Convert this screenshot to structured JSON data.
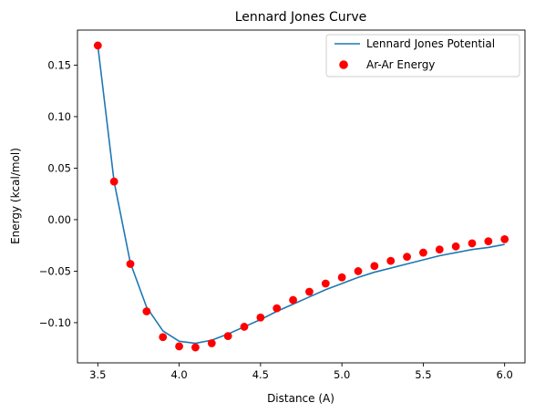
{
  "chart_data": {
    "type": "line",
    "title": "Lennard Jones Curve",
    "xlabel": "Distance (A)",
    "ylabel": "Energy (kcal/mol)",
    "xlim": [
      3.375,
      6.125
    ],
    "ylim": [
      -0.139,
      0.184
    ],
    "xticks": [
      {
        "value": 3.5,
        "label": "3.5"
      },
      {
        "value": 4.0,
        "label": "4.0"
      },
      {
        "value": 4.5,
        "label": "4.5"
      },
      {
        "value": 5.0,
        "label": "5.0"
      },
      {
        "value": 5.5,
        "label": "5.5"
      },
      {
        "value": 6.0,
        "label": "6.0"
      }
    ],
    "yticks": [
      {
        "value": 0.15,
        "label": "0.15"
      },
      {
        "value": 0.1,
        "label": "0.10"
      },
      {
        "value": 0.05,
        "label": "0.05"
      },
      {
        "value": 0.0,
        "label": "0.00"
      },
      {
        "value": -0.05,
        "label": "−0.05"
      },
      {
        "value": -0.1,
        "label": "−0.10"
      }
    ],
    "grid": false,
    "legend_position": "top-right",
    "x": [
      3.5,
      3.6,
      3.7,
      3.8,
      3.9,
      4.0,
      4.1,
      4.2,
      4.3,
      4.4,
      4.5,
      4.6,
      4.7,
      4.8,
      4.9,
      5.0,
      5.1,
      5.2,
      5.3,
      5.4,
      5.5,
      5.6,
      5.7,
      5.8,
      5.9,
      6.0
    ],
    "series": [
      {
        "name": "Lennard Jones Potential",
        "kind": "line",
        "color": "#1f77b4",
        "values": [
          0.169,
          0.037,
          -0.042,
          -0.085,
          -0.108,
          -0.118,
          -0.12,
          -0.117,
          -0.111,
          -0.104,
          -0.097,
          -0.089,
          -0.082,
          -0.075,
          -0.068,
          -0.062,
          -0.056,
          -0.051,
          -0.047,
          -0.043,
          -0.039,
          -0.035,
          -0.032,
          -0.029,
          -0.027,
          -0.024
        ]
      },
      {
        "name": "Ar-Ar Energy",
        "kind": "scatter",
        "color": "#ff0000",
        "values": [
          0.169,
          0.037,
          -0.043,
          -0.089,
          -0.114,
          -0.123,
          -0.124,
          -0.12,
          -0.113,
          -0.104,
          -0.095,
          -0.086,
          -0.078,
          -0.07,
          -0.062,
          -0.056,
          -0.05,
          -0.045,
          -0.04,
          -0.036,
          -0.032,
          -0.029,
          -0.026,
          -0.023,
          -0.021,
          -0.019
        ]
      }
    ]
  }
}
